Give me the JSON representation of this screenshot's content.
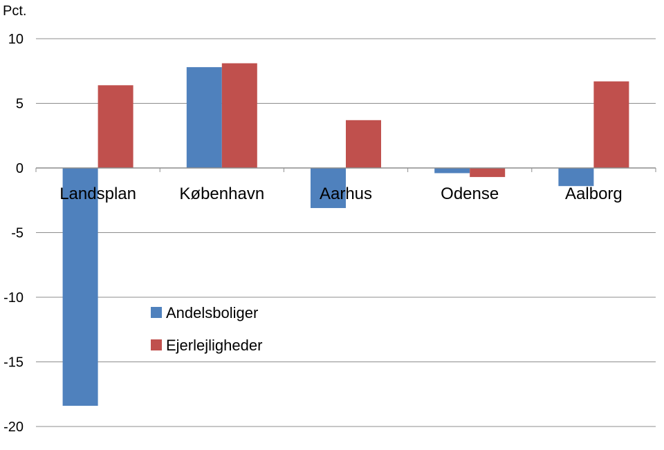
{
  "chart_data": {
    "type": "bar",
    "title": "",
    "ylabel_unit": "Pct.",
    "xlabel": "",
    "ylim": [
      -20,
      10
    ],
    "yticks": [
      10,
      5,
      0,
      -5,
      -10,
      -15,
      -20
    ],
    "grid": true,
    "legend_position": "center-left",
    "categories": [
      "Landsplan",
      "København",
      "Aarhus",
      "Odense",
      "Aalborg"
    ],
    "series": [
      {
        "name": "Andelsboliger",
        "color": "#4F81BD",
        "values": [
          -18.4,
          7.8,
          -3.1,
          -0.4,
          -1.4
        ]
      },
      {
        "name": "Ejerlejligheder",
        "color": "#C0504D",
        "values": [
          6.4,
          8.1,
          3.7,
          -0.7,
          6.7
        ]
      }
    ]
  }
}
